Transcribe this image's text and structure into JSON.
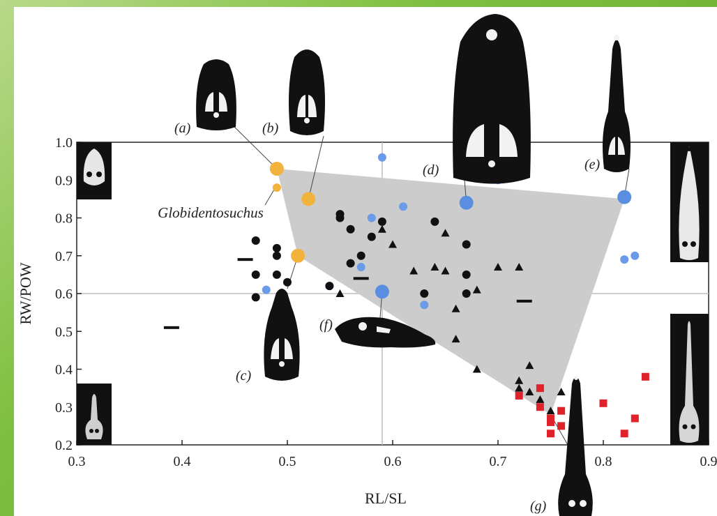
{
  "chart_data": {
    "type": "scatter",
    "title": "",
    "xlabel": "RL/SL",
    "ylabel": "RW/POW",
    "xlim": [
      0.3,
      0.9
    ],
    "ylim": [
      0.2,
      1.0
    ],
    "x_ticks": [
      "0.3",
      "0.4",
      "0.5",
      "0.6",
      "0.7",
      "0.8",
      "0.9"
    ],
    "y_ticks": [
      "0.2",
      "0.3",
      "0.4",
      "0.5",
      "0.6",
      "0.7",
      "0.8",
      "0.9",
      "1.0"
    ],
    "reference_lines": {
      "x": 0.59,
      "y": 0.6
    },
    "grid": false,
    "hull_polygon": [
      [
        0.49,
        0.93
      ],
      [
        0.82,
        0.85
      ],
      [
        0.75,
        0.28
      ],
      [
        0.51,
        0.7
      ]
    ],
    "hull_color": "#cccccc",
    "series": [
      {
        "marker": "circle-large",
        "color": "#f2b33d",
        "points": [
          [
            0.49,
            0.93
          ],
          [
            0.52,
            0.85
          ],
          [
            0.51,
            0.7
          ]
        ]
      },
      {
        "marker": "circle-small",
        "color": "#f2b33d",
        "points": [
          [
            0.49,
            0.88
          ]
        ]
      },
      {
        "marker": "circle-large",
        "color": "#5a8ee0",
        "points": [
          [
            0.67,
            0.84
          ],
          [
            0.82,
            0.855
          ],
          [
            0.59,
            0.605
          ]
        ]
      },
      {
        "marker": "circle",
        "color": "#6a9ae8",
        "points": [
          [
            0.59,
            0.96
          ],
          [
            0.61,
            0.83
          ],
          [
            0.58,
            0.8
          ],
          [
            0.57,
            0.67
          ],
          [
            0.48,
            0.61
          ],
          [
            0.54,
            0.62
          ],
          [
            0.63,
            0.57
          ],
          [
            0.7,
            0.9
          ],
          [
            0.82,
            0.69
          ],
          [
            0.83,
            0.7
          ]
        ]
      },
      {
        "marker": "circle",
        "color": "#111111",
        "points": [
          [
            0.47,
            0.74
          ],
          [
            0.49,
            0.72
          ],
          [
            0.47,
            0.65
          ],
          [
            0.49,
            0.7
          ],
          [
            0.49,
            0.65
          ],
          [
            0.5,
            0.63
          ],
          [
            0.47,
            0.59
          ],
          [
            0.55,
            0.81
          ],
          [
            0.55,
            0.8
          ],
          [
            0.56,
            0.77
          ],
          [
            0.56,
            0.68
          ],
          [
            0.57,
            0.7
          ],
          [
            0.58,
            0.75
          ],
          [
            0.59,
            0.79
          ],
          [
            0.64,
            0.79
          ],
          [
            0.67,
            0.73
          ],
          [
            0.67,
            0.65
          ],
          [
            0.67,
            0.6
          ],
          [
            0.63,
            0.6
          ],
          [
            0.54,
            0.62
          ]
        ]
      },
      {
        "marker": "triangle",
        "color": "#111111",
        "points": [
          [
            0.59,
            0.77
          ],
          [
            0.6,
            0.73
          ],
          [
            0.65,
            0.76
          ],
          [
            0.62,
            0.66
          ],
          [
            0.64,
            0.67
          ],
          [
            0.65,
            0.66
          ],
          [
            0.66,
            0.56
          ],
          [
            0.68,
            0.61
          ],
          [
            0.7,
            0.67
          ],
          [
            0.72,
            0.67
          ],
          [
            0.55,
            0.6
          ],
          [
            0.66,
            0.48
          ],
          [
            0.68,
            0.4
          ],
          [
            0.73,
            0.41
          ],
          [
            0.72,
            0.37
          ],
          [
            0.72,
            0.35
          ],
          [
            0.73,
            0.34
          ],
          [
            0.76,
            0.34
          ],
          [
            0.74,
            0.32
          ],
          [
            0.75,
            0.29
          ]
        ]
      },
      {
        "marker": "dash",
        "color": "#111111",
        "points": [
          [
            0.39,
            0.51
          ],
          [
            0.46,
            0.69
          ],
          [
            0.57,
            0.64
          ],
          [
            0.725,
            0.58
          ]
        ]
      },
      {
        "marker": "square",
        "color": "#e0232a",
        "points": [
          [
            0.72,
            0.33
          ],
          [
            0.74,
            0.35
          ],
          [
            0.74,
            0.3
          ],
          [
            0.75,
            0.27
          ],
          [
            0.75,
            0.26
          ],
          [
            0.76,
            0.29
          ],
          [
            0.76,
            0.25
          ],
          [
            0.75,
            0.23
          ],
          [
            0.8,
            0.31
          ],
          [
            0.82,
            0.23
          ],
          [
            0.83,
            0.27
          ],
          [
            0.84,
            0.38
          ]
        ]
      }
    ],
    "annotations": [
      {
        "label": "(a)",
        "target": [
          0.49,
          0.93
        ]
      },
      {
        "label": "(b)",
        "target": [
          0.52,
          0.85
        ]
      },
      {
        "label": "(c)",
        "target": [
          0.51,
          0.7
        ]
      },
      {
        "label": "(d)",
        "target": [
          0.67,
          0.84
        ]
      },
      {
        "label": "(e)",
        "target": [
          0.82,
          0.855
        ]
      },
      {
        "label": "(f)",
        "target": [
          0.59,
          0.605
        ]
      },
      {
        "label": "(g)",
        "target": [
          0.75,
          0.28
        ]
      },
      {
        "label": "Globidentosuchus",
        "target": [
          0.49,
          0.88
        ]
      }
    ]
  },
  "colors": {
    "background_gradient_start": "#b8d98a",
    "background_gradient_end": "#5ea52b",
    "hull": "#cccccc",
    "yellow": "#f2b33d",
    "blue": "#5a8ee0",
    "red": "#e0232a",
    "black": "#111111"
  }
}
